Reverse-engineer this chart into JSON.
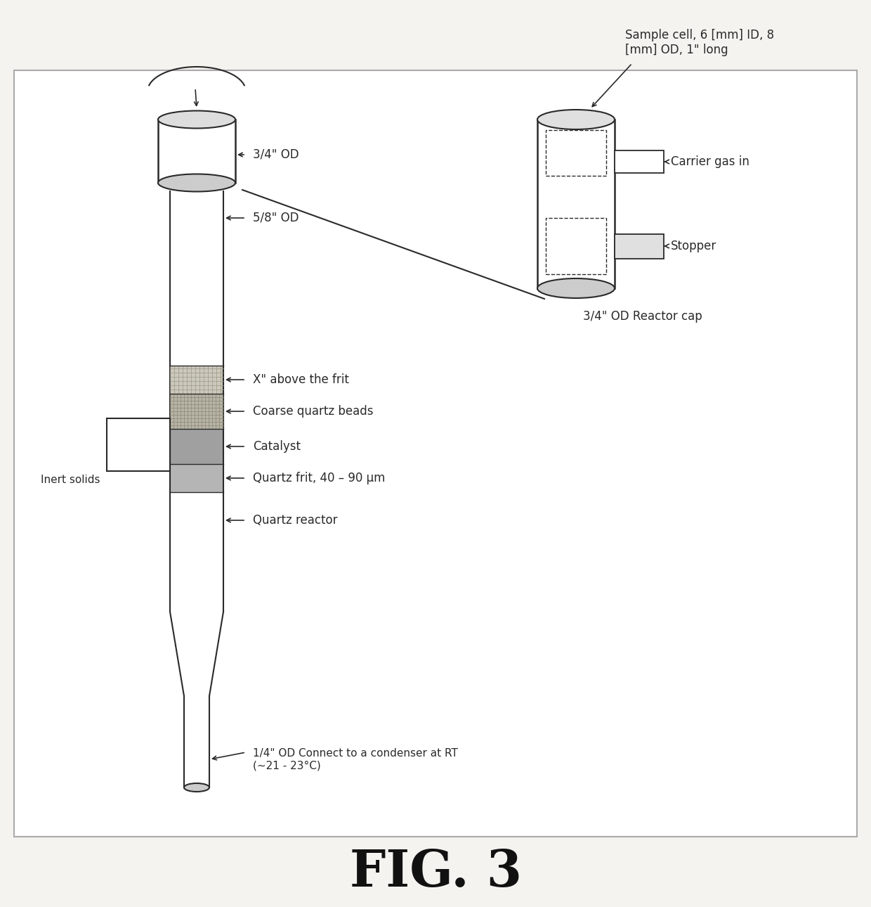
{
  "title": "FIG. 3",
  "bg_color": "#f5f3ef",
  "box_color": "#e8e5e0",
  "line_color": "#2a2a2a",
  "fill_color": "#ffffff",
  "labels": {
    "three_quarter_od": "3/4\" OD",
    "five_eighth_od": "5/8\" OD",
    "x_above_frit": "X\" above the frit",
    "coarse_quartz": "Coarse quartz beads",
    "catalyst": "Catalyst",
    "quartz_frit": "Quartz frit, 40 – 90 μm",
    "inert_solids": "Inert solids",
    "quartz_reactor": "Quartz reactor",
    "quarter_od": "1/4\" OD Connect to a condenser at RT\n(~21 - 23°C)",
    "sample_cell": "Sample cell, 6 [mm] ID, 8\n[mm] OD, 1\" long",
    "carrier_gas": "Carrier gas in",
    "stopper": "Stopper",
    "reactor_cap": "3/4\" OD Reactor cap"
  },
  "font_size": 12,
  "title_font_size": 52
}
